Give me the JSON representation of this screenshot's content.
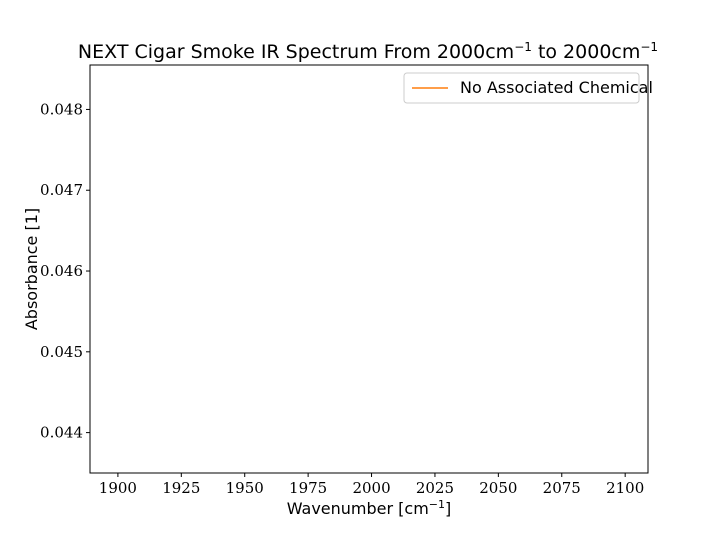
{
  "chart_data": {
    "type": "line",
    "title": {
      "prefix": "NEXT Cigar Smoke IR Spectrum From 2000cm",
      "sup1": "−1",
      "middle": " to 2000cm",
      "sup2": "−1"
    },
    "xlabel": {
      "prefix": "Wavenumber [cm",
      "sup": "−1",
      "suffix": "]"
    },
    "ylabel": "Absorbance [1]",
    "xlim": [
      1889,
      2109
    ],
    "ylim": [
      0.0435,
      0.04855
    ],
    "xticks": [
      1900,
      1925,
      1950,
      1975,
      2000,
      2025,
      2050,
      2075,
      2100
    ],
    "xtick_labels": [
      "1900",
      "1925",
      "1950",
      "1975",
      "2000",
      "2025",
      "2050",
      "2075",
      "2100"
    ],
    "yticks": [
      0.044,
      0.045,
      0.046,
      0.047,
      0.048
    ],
    "ytick_labels": [
      "0.044",
      "0.045",
      "0.046",
      "0.047",
      "0.048"
    ],
    "grid": false,
    "legend_position": "top-right",
    "series": [
      {
        "name": "No Associated Chemical",
        "color": "#ff7f0e",
        "x": [],
        "y": []
      }
    ]
  }
}
